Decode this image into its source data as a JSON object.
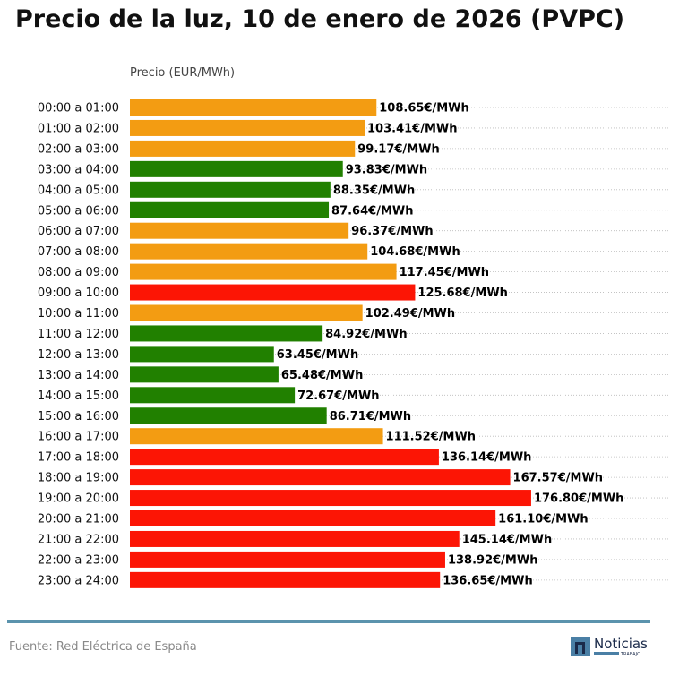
{
  "chart_data": {
    "type": "bar",
    "orientation": "horizontal",
    "title": "Precio de la luz, 10 de enero de 2026 (PVPC)",
    "xlabel": "Precio (EUR/MWh)",
    "ylabel": "",
    "xlim": [
      0,
      238
    ],
    "grid": "horizontal dotted",
    "value_suffix": "€/MWh",
    "categories": [
      "00:00 a 01:00",
      "01:00 a 02:00",
      "02:00 a 03:00",
      "03:00 a 04:00",
      "04:00 a 05:00",
      "05:00 a 06:00",
      "06:00 a 07:00",
      "07:00 a 08:00",
      "08:00 a 09:00",
      "09:00 a 10:00",
      "10:00 a 11:00",
      "11:00 a 12:00",
      "12:00 a 13:00",
      "13:00 a 14:00",
      "14:00 a 15:00",
      "15:00 a 16:00",
      "16:00 a 17:00",
      "17:00 a 18:00",
      "18:00 a 19:00",
      "19:00 a 20:00",
      "20:00 a 21:00",
      "21:00 a 22:00",
      "22:00 a 23:00",
      "23:00 a 24:00"
    ],
    "values": [
      108.65,
      103.41,
      99.17,
      93.83,
      88.35,
      87.64,
      96.37,
      104.68,
      117.45,
      125.68,
      102.49,
      84.92,
      63.45,
      65.48,
      72.67,
      86.71,
      111.52,
      136.14,
      167.57,
      176.8,
      161.1,
      145.14,
      138.92,
      136.65
    ],
    "labels": [
      "108.65€/MWh",
      "103.41€/MWh",
      "99.17€/MWh",
      "93.83€/MWh",
      "88.35€/MWh",
      "87.64€/MWh",
      "96.37€/MWh",
      "104.68€/MWh",
      "117.45€/MWh",
      "125.68€/MWh",
      "102.49€/MWh",
      "84.92€/MWh",
      "63.45€/MWh",
      "65.48€/MWh",
      "72.67€/MWh",
      "86.71€/MWh",
      "111.52€/MWh",
      "136.14€/MWh",
      "167.57€/MWh",
      "176.80€/MWh",
      "161.10€/MWh",
      "145.14€/MWh",
      "138.92€/MWh",
      "136.65€/MWh"
    ],
    "levels": [
      "mid",
      "mid",
      "mid",
      "low",
      "low",
      "low",
      "mid",
      "mid",
      "mid",
      "high",
      "mid",
      "low",
      "low",
      "low",
      "low",
      "low",
      "mid",
      "high",
      "high",
      "high",
      "high",
      "high",
      "high",
      "high"
    ],
    "colors": {
      "low": "#218000",
      "mid": "#f39c12",
      "high": "#fc1505"
    }
  },
  "footer": {
    "source": "Fuente: Red Eléctrica de España",
    "logo_text": "Noticias",
    "logo_subtext": "TRABAJO",
    "rule_color": "#5b93ad"
  }
}
